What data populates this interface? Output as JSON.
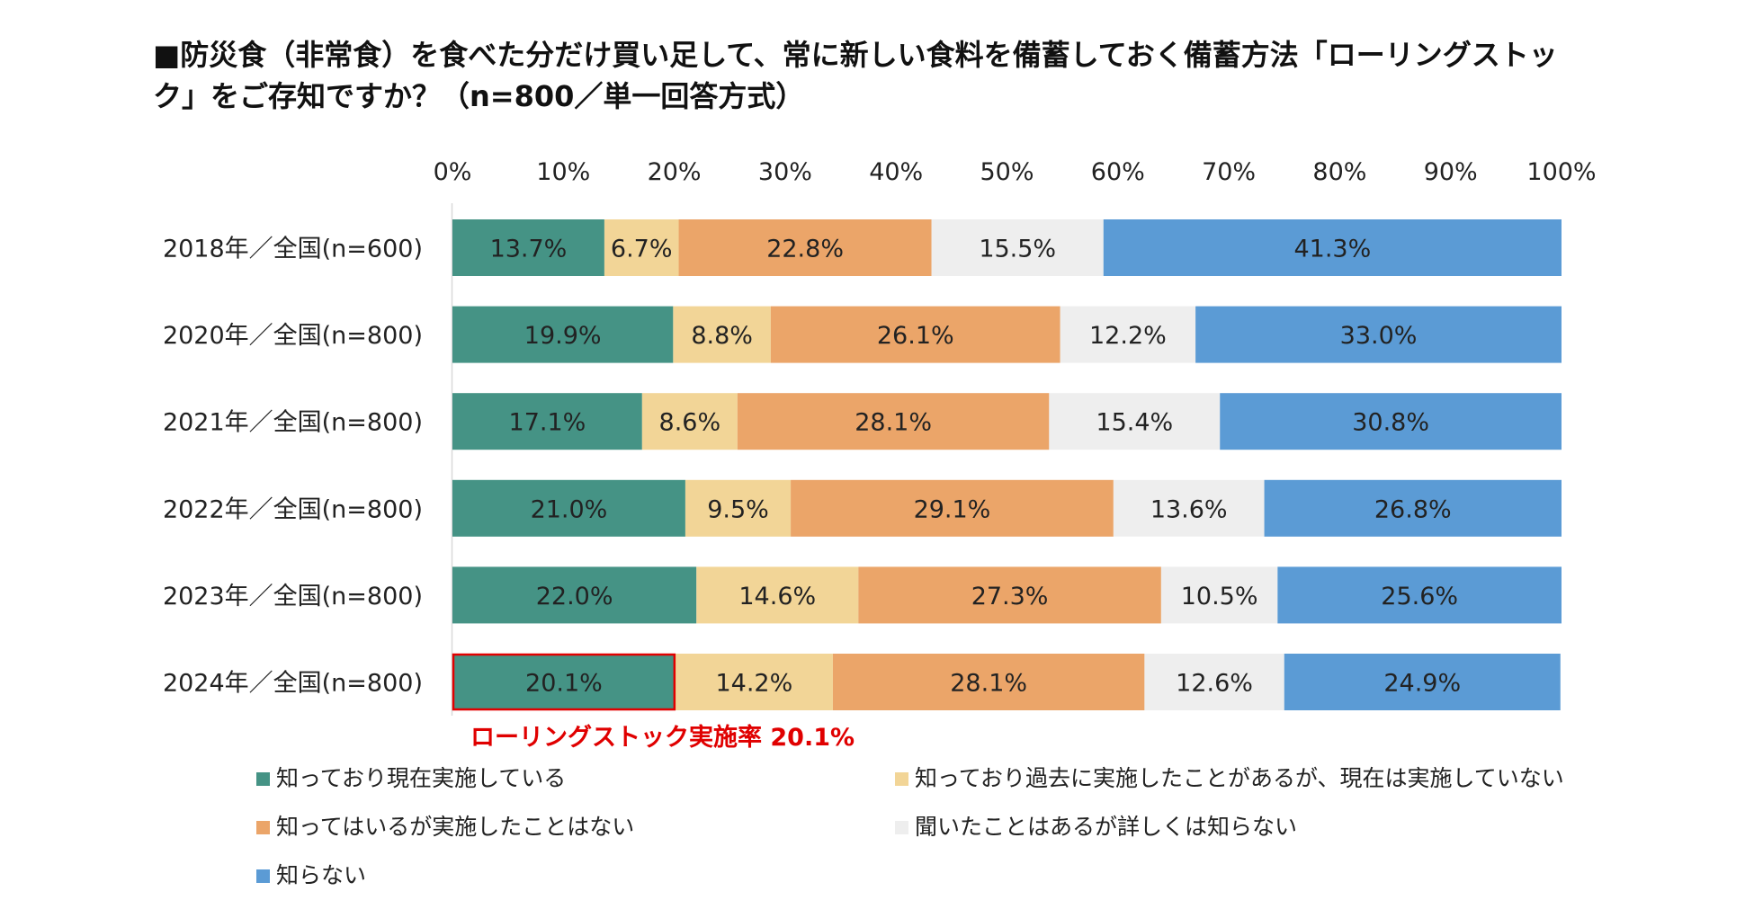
{
  "title": {
    "line1": "■防災食（非常食）を食べた分だけ買い足して、常に新しい食料を備蓄しておく備蓄方法「ローリングストッ",
    "line2": "ク」をご存知ですか？（n=800／単一回答方式）"
  },
  "chart_data": {
    "type": "bar",
    "orientation": "horizontal",
    "stacked": true,
    "title": "防災食（非常食）を食べた分だけ買い足して、常に新しい食料を備蓄しておく備蓄方法「ローリングストック」をご存知ですか？（n=800／単一回答方式）",
    "xlim": [
      0,
      100
    ],
    "x_ticks": [
      "0%",
      "10%",
      "20%",
      "30%",
      "40%",
      "50%",
      "60%",
      "70%",
      "80%",
      "90%",
      "100%"
    ],
    "categories": [
      "2018年／全国(n=600)",
      "2020年／全国(n=800)",
      "2021年／全国(n=800)",
      "2022年／全国(n=800)",
      "2023年／全国(n=800)",
      "2024年／全国(n=800)"
    ],
    "series": [
      {
        "name": "知っており現在実施している",
        "color": "#459385",
        "values": [
          13.7,
          19.9,
          17.1,
          21.0,
          22.0,
          20.1
        ]
      },
      {
        "name": "知っており過去に実施したことがあるが、現在は実施していない",
        "color": "#f2d597",
        "values": [
          6.7,
          8.8,
          8.6,
          9.5,
          14.6,
          14.2
        ]
      },
      {
        "name": "知ってはいるが実施したことはない",
        "color": "#eba569",
        "values": [
          22.8,
          26.1,
          28.1,
          29.1,
          27.3,
          28.1
        ]
      },
      {
        "name": "聞いたことはあるが詳しくは知らない",
        "color": "#eeeeee",
        "values": [
          15.5,
          12.2,
          15.4,
          13.6,
          10.5,
          12.6
        ]
      },
      {
        "name": "知らない",
        "color": "#5b9bd5",
        "values": [
          41.3,
          33.0,
          30.8,
          26.8,
          25.6,
          24.9
        ]
      }
    ],
    "highlight": {
      "row": 5,
      "series": 0,
      "color": "#e00000"
    },
    "annotation": "ローリングストック実施率 20.1%",
    "legend_position": "bottom"
  }
}
